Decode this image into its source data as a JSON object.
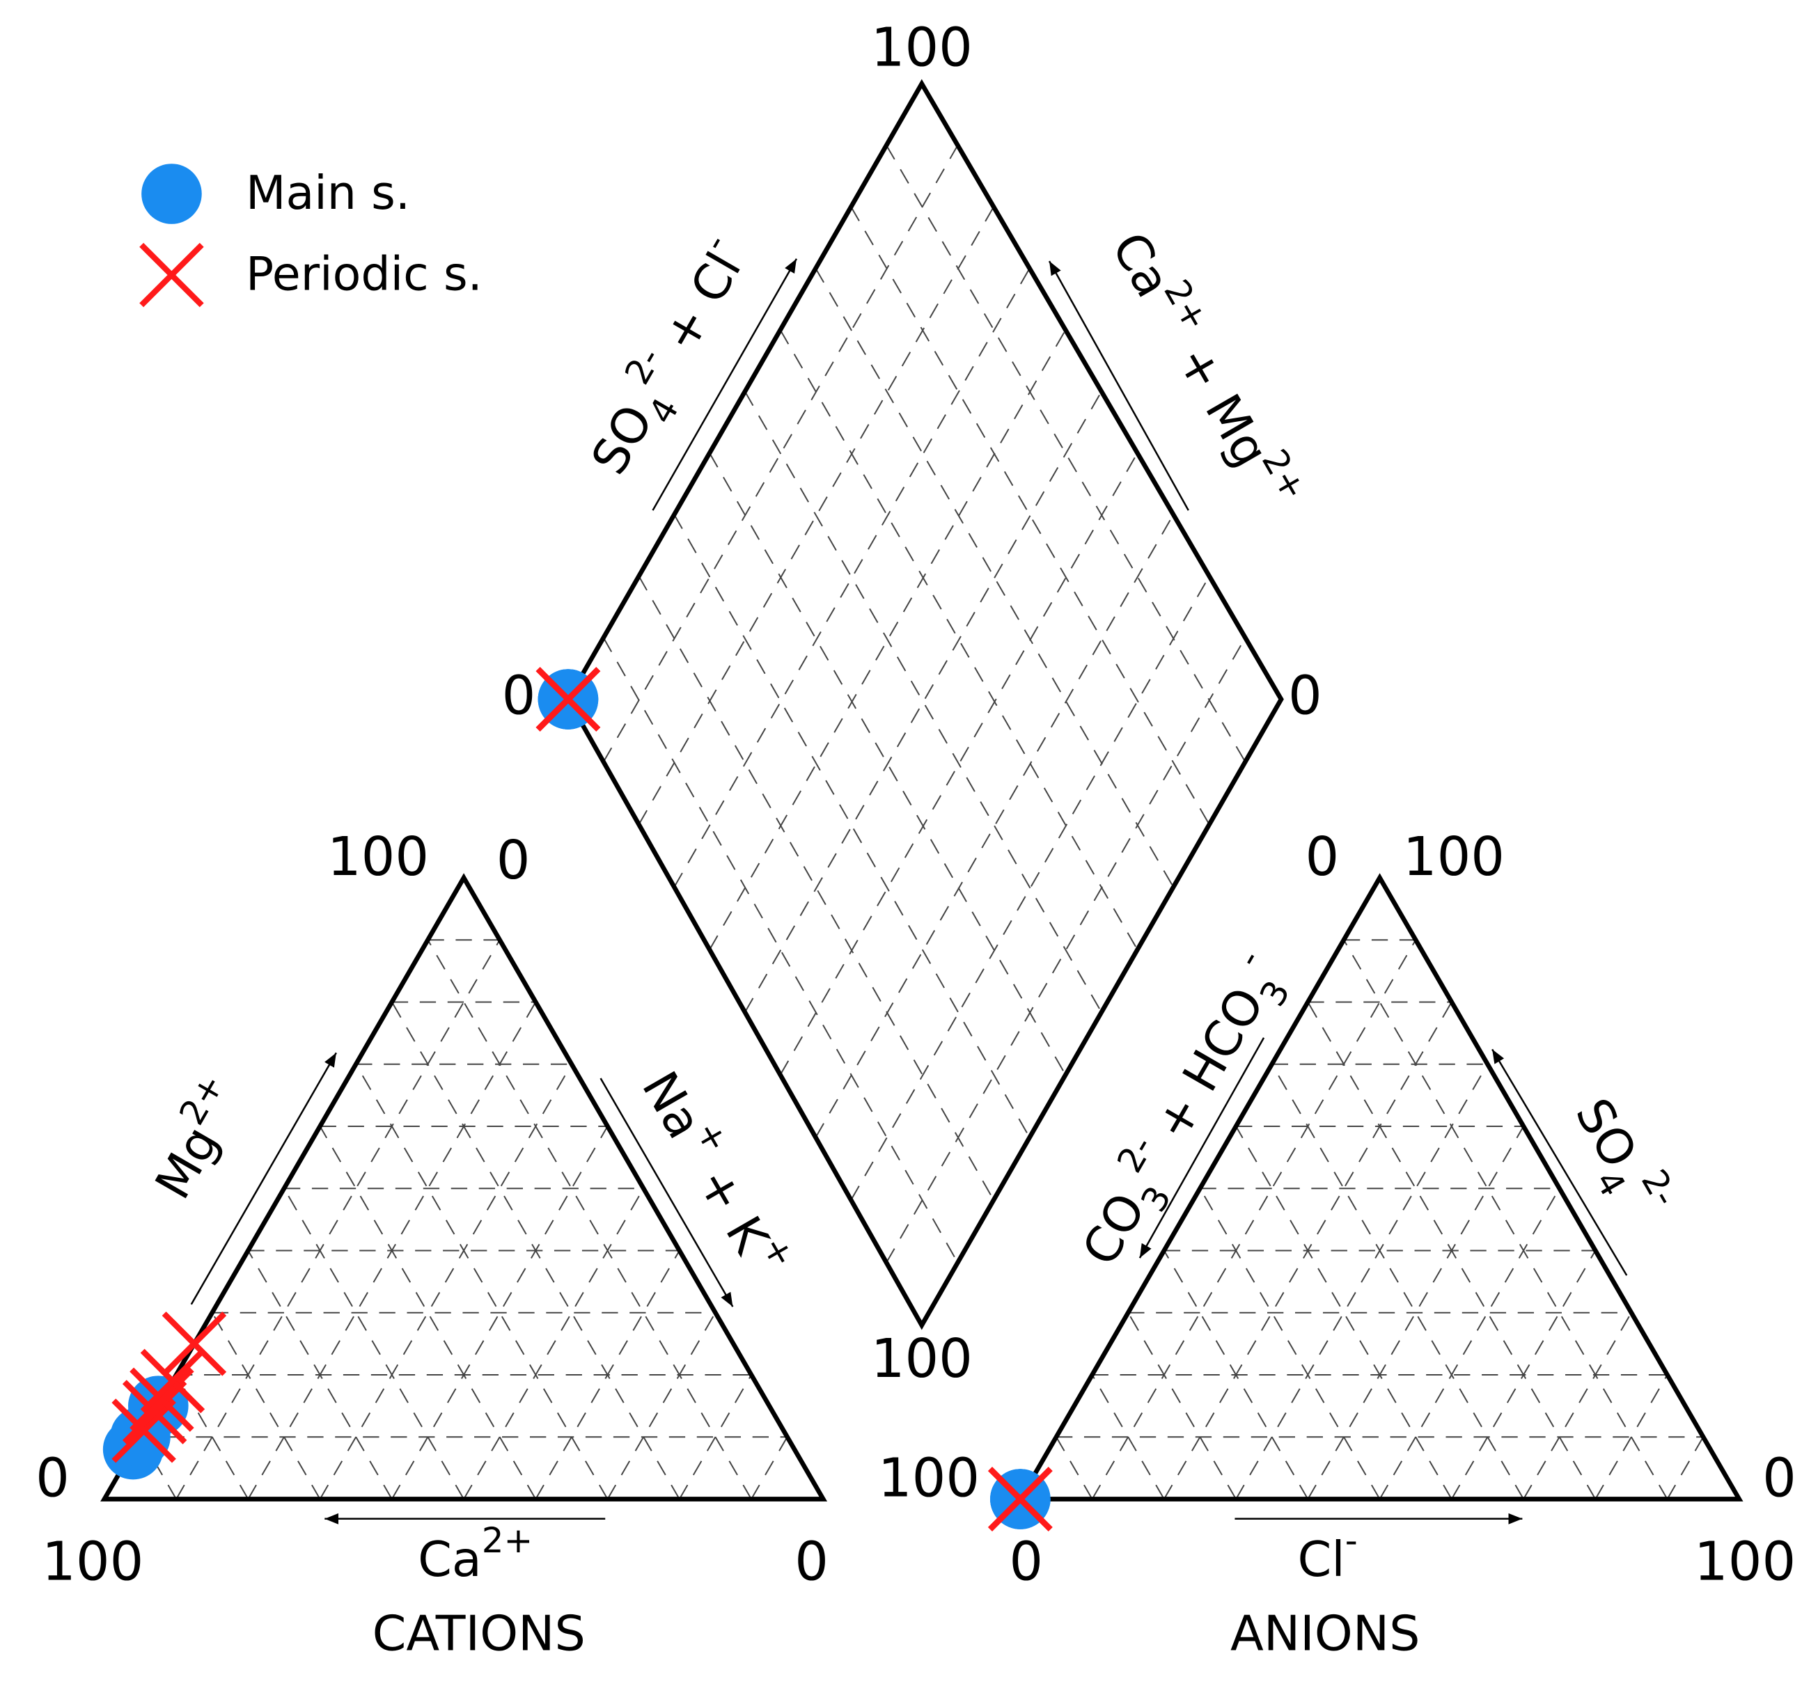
{
  "chart_data": {
    "type": "piper",
    "legend": "top-left",
    "grid": [
      10,
      20,
      30,
      40,
      50,
      60,
      70,
      80,
      90
    ],
    "cations": {
      "title": "CATIONS",
      "axes": [
        {
          "label": {
            "parts": [
              "Mg",
              "2+"
            ],
            "styles": [
              "base",
              "sup"
            ]
          },
          "ticks": [
            0,
            100
          ]
        },
        {
          "label": {
            "parts": [
              "Na",
              "+",
              " + K",
              "+"
            ],
            "styles": [
              "base",
              "sup",
              "base",
              "sup"
            ]
          },
          "ticks": [
            0
          ]
        },
        {
          "label": {
            "parts": [
              "Ca",
              "2+"
            ],
            "styles": [
              "base",
              "sup"
            ]
          },
          "ticks": [
            100,
            0
          ]
        }
      ]
    },
    "anions": {
      "title": "ANIONS",
      "axes": [
        {
          "label": {
            "parts": [
              "CO",
              "3",
              "2-",
              " + HCO",
              "3",
              "-"
            ],
            "styles": [
              "base",
              "sub",
              "sup",
              "base",
              "sub",
              "sup"
            ]
          },
          "ticks": [
            0,
            100
          ]
        },
        {
          "label": {
            "parts": [
              "SO",
              "4",
              "2-"
            ],
            "styles": [
              "base",
              "sub",
              "sup"
            ]
          },
          "ticks": [
            0,
            100
          ]
        },
        {
          "label": {
            "parts": [
              "Cl",
              "-"
            ],
            "styles": [
              "base",
              "sup"
            ]
          },
          "ticks": [
            0,
            100
          ]
        }
      ]
    },
    "diamond": {
      "axes": [
        {
          "label": {
            "parts": [
              "SO",
              "4",
              "2-",
              " + Cl",
              "-"
            ],
            "styles": [
              "base",
              "sub",
              "sup",
              "base",
              "sup"
            ]
          },
          "ticks": [
            0,
            100
          ]
        },
        {
          "label": {
            "parts": [
              "Ca",
              "2+",
              " + Mg",
              "2+"
            ],
            "styles": [
              "base",
              "sup",
              "base",
              "sup"
            ]
          },
          "ticks": [
            0
          ]
        },
        {
          "ticks": [
            100
          ]
        }
      ]
    },
    "series": [
      {
        "name": "Main s.",
        "color": "#1a8cf0",
        "marker": "circle",
        "ca": [
          92,
          90,
          85
        ],
        "mg": [
          8,
          10,
          15
        ],
        "na_k": [
          0,
          0,
          0
        ],
        "co3_hco3": [
          100,
          100,
          100
        ],
        "cl": [
          0,
          0,
          0
        ],
        "so4": [
          0,
          0,
          0
        ]
      },
      {
        "name": "Periodic s.",
        "color": "#ff1a1a",
        "marker": "cross",
        "ca": [
          89,
          86,
          84,
          81,
          75
        ],
        "mg": [
          11,
          14,
          16,
          19,
          25
        ],
        "na_k": [
          0,
          0,
          0,
          0,
          0
        ],
        "co3_hco3": [
          100,
          100,
          100,
          100,
          100
        ],
        "cl": [
          0,
          0,
          0,
          0,
          0
        ],
        "so4": [
          0,
          0,
          0,
          0,
          0
        ]
      }
    ]
  }
}
